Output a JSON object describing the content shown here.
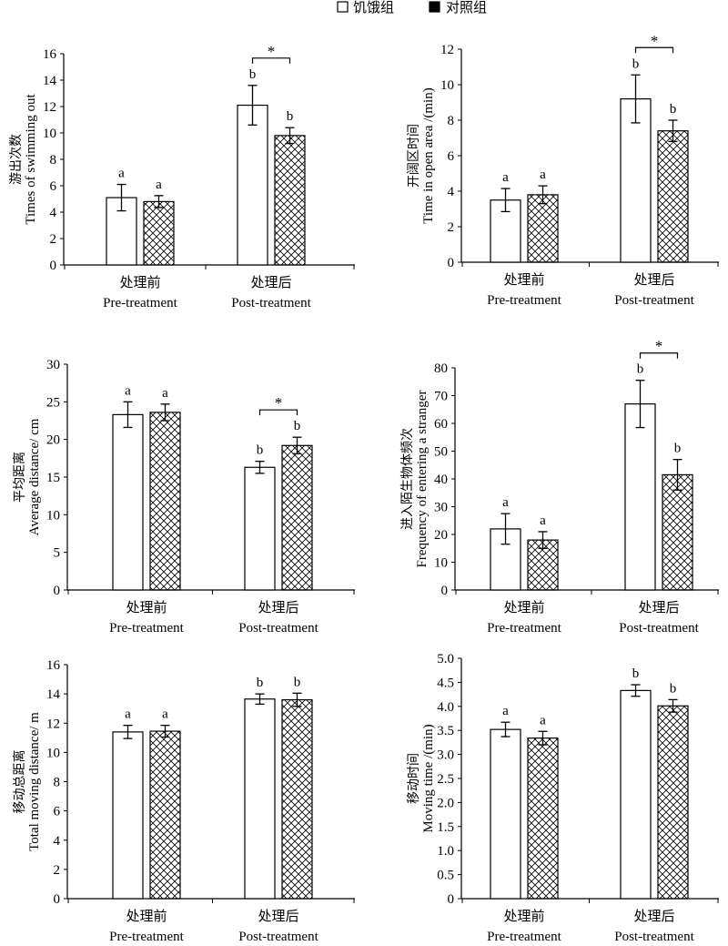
{
  "legend": {
    "items": [
      {
        "label": "饥饿组",
        "swatch": "open"
      },
      {
        "label": "对照组",
        "swatch": "solid"
      }
    ]
  },
  "colors": {
    "ink": "#000000",
    "open_fill": "#ffffff"
  },
  "chart_data": [
    {
      "type": "bar",
      "title": "",
      "ylabel_cn": "游出次数",
      "ylabel_en": "Times of swimming out",
      "ylim": [
        0,
        16
      ],
      "yticks": [
        0,
        2,
        4,
        6,
        8,
        10,
        12,
        14,
        16
      ],
      "categories": [
        {
          "cn": "处理前",
          "en": "Pre-treatment"
        },
        {
          "cn": "处理后",
          "en": "Post-treatment"
        }
      ],
      "series": [
        {
          "name": "饥饿组",
          "fill": "open",
          "values": [
            5.1,
            12.1
          ],
          "errors": [
            1.0,
            1.5
          ],
          "letters": [
            "a",
            "b"
          ]
        },
        {
          "name": "对照组",
          "fill": "crosshatch",
          "values": [
            4.8,
            9.8
          ],
          "errors": [
            0.45,
            0.6
          ],
          "letters": [
            "a",
            "b"
          ]
        }
      ],
      "significance": [
        {
          "category_index": 1,
          "label": "*"
        }
      ]
    },
    {
      "type": "bar",
      "title": "",
      "ylabel_cn": "开阔区时间",
      "ylabel_en": "Time in open area /(min)",
      "ylim": [
        0,
        12
      ],
      "yticks": [
        0,
        2,
        4,
        6,
        8,
        10,
        12
      ],
      "categories": [
        {
          "cn": "处理前",
          "en": "Pre-treatment"
        },
        {
          "cn": "处理后",
          "en": "Post-treatment"
        }
      ],
      "series": [
        {
          "name": "饥饿组",
          "fill": "open",
          "values": [
            3.5,
            9.2
          ],
          "errors": [
            0.65,
            1.35
          ],
          "letters": [
            "a",
            "b"
          ]
        },
        {
          "name": "对照组",
          "fill": "crosshatch",
          "values": [
            3.8,
            7.4
          ],
          "errors": [
            0.5,
            0.6
          ],
          "letters": [
            "a",
            "b"
          ]
        }
      ],
      "significance": [
        {
          "category_index": 1,
          "label": "*"
        }
      ]
    },
    {
      "type": "bar",
      "title": "",
      "ylabel_cn": "平均距离",
      "ylabel_en": "Average distance/ cm",
      "ylim": [
        0,
        30
      ],
      "yticks": [
        0,
        5,
        10,
        15,
        20,
        25,
        30
      ],
      "categories": [
        {
          "cn": "处理前",
          "en": "Pre-treatment"
        },
        {
          "cn": "处理后",
          "en": "Post-treatment"
        }
      ],
      "series": [
        {
          "name": "饥饿组",
          "fill": "open",
          "values": [
            23.3,
            16.3
          ],
          "errors": [
            1.7,
            0.8
          ],
          "letters": [
            "a",
            "b"
          ]
        },
        {
          "name": "对照组",
          "fill": "crosshatch",
          "values": [
            23.6,
            19.2
          ],
          "errors": [
            1.1,
            1.1
          ],
          "letters": [
            "a",
            "b"
          ]
        }
      ],
      "significance": [
        {
          "category_index": 1,
          "label": "*"
        }
      ]
    },
    {
      "type": "bar",
      "title": "",
      "ylabel_cn": "进入陌生物体频次",
      "ylabel_en": "Frequency of entering a stranger",
      "ylim": [
        0,
        80
      ],
      "yticks": [
        0,
        10,
        20,
        30,
        40,
        50,
        60,
        70,
        80
      ],
      "categories": [
        {
          "cn": "处理前",
          "en": "Pre-treatment"
        },
        {
          "cn": "处理后",
          "en": "Post-treatment"
        }
      ],
      "series": [
        {
          "name": "饥饿组",
          "fill": "open",
          "values": [
            22,
            67
          ],
          "errors": [
            5.5,
            8.5
          ],
          "letters": [
            "a",
            "b"
          ]
        },
        {
          "name": "对照组",
          "fill": "crosshatch",
          "values": [
            18,
            41.5
          ],
          "errors": [
            3,
            5.5
          ],
          "letters": [
            "a",
            "b"
          ]
        }
      ],
      "significance": [
        {
          "category_index": 1,
          "label": "*"
        }
      ]
    },
    {
      "type": "bar",
      "title": "",
      "ylabel_cn": "移动总距离",
      "ylabel_en": "Total moving distance/ m",
      "ylim": [
        0,
        16
      ],
      "yticks": [
        0,
        2,
        4,
        6,
        8,
        10,
        12,
        14,
        16
      ],
      "categories": [
        {
          "cn": "处理前",
          "en": "Pre-treatment"
        },
        {
          "cn": "处理后",
          "en": "Post-treatment"
        }
      ],
      "series": [
        {
          "name": "饥饿组",
          "fill": "open",
          "values": [
            11.4,
            13.65
          ],
          "errors": [
            0.45,
            0.35
          ],
          "letters": [
            "a",
            "b"
          ]
        },
        {
          "name": "对照组",
          "fill": "crosshatch",
          "values": [
            11.45,
            13.6
          ],
          "errors": [
            0.4,
            0.45
          ],
          "letters": [
            "a",
            "b"
          ]
        }
      ],
      "significance": []
    },
    {
      "type": "bar",
      "title": "",
      "ylabel_cn": "移动时间",
      "ylabel_en": "Moving time /(min)",
      "ylim": [
        0,
        5
      ],
      "yticks": [
        "0",
        "0.5",
        "1.0",
        "1.5",
        "2.0",
        "2.5",
        "3.0",
        "3.5",
        "4.0",
        "4.5",
        "5.0"
      ],
      "categories": [
        {
          "cn": "处理前",
          "en": "Pre-treatment"
        },
        {
          "cn": "处理后",
          "en": "Post-treatment"
        }
      ],
      "series": [
        {
          "name": "饥饿组",
          "fill": "open",
          "values": [
            3.52,
            4.33
          ],
          "errors": [
            0.15,
            0.12
          ],
          "letters": [
            "a",
            "b"
          ]
        },
        {
          "name": "对照组",
          "fill": "crosshatch",
          "values": [
            3.34,
            4.01
          ],
          "errors": [
            0.14,
            0.13
          ],
          "letters": [
            "a",
            "b"
          ]
        }
      ],
      "significance": []
    }
  ]
}
